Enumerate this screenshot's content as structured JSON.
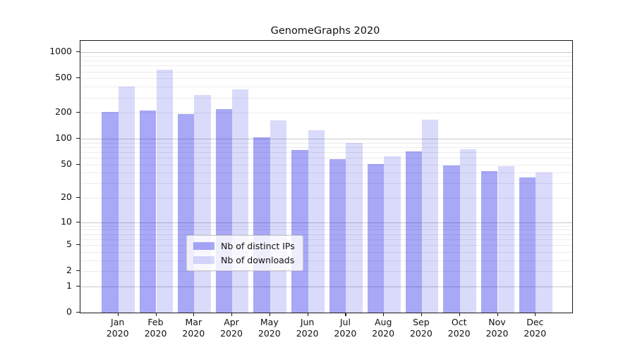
{
  "chart_data": {
    "type": "bar",
    "title": "GenomeGraphs 2020",
    "categories": [
      "Jan 2020",
      "Feb 2020",
      "Mar 2020",
      "Apr 2020",
      "May 2020",
      "Jun 2020",
      "Jul 2020",
      "Aug 2020",
      "Sep 2020",
      "Oct 2020",
      "Nov 2020",
      "Dec 2020"
    ],
    "series": [
      {
        "name": "Nb of distinct IPs",
        "color": "rgba(0,0,230,0.34)",
        "values": [
          205,
          212,
          195,
          220,
          104,
          74,
          58,
          51,
          71,
          49,
          42,
          35
        ]
      },
      {
        "name": "Nb of downloads",
        "color": "rgba(0,0,230,0.145)",
        "values": [
          405,
          635,
          320,
          375,
          162,
          126,
          90,
          62,
          166,
          75,
          48,
          40
        ]
      }
    ],
    "xlabel": "",
    "ylabel": "",
    "y_scale": "log1p",
    "y_ticks": [
      1000,
      500,
      200,
      100,
      50,
      20,
      10,
      5,
      2,
      1,
      0
    ],
    "ylim": [
      0,
      1357
    ],
    "grid": "horizontal",
    "legend_position": "inside-bottom-center",
    "grid_major_color": "#c9c9c9",
    "grid_minor_color": "#ececec"
  }
}
